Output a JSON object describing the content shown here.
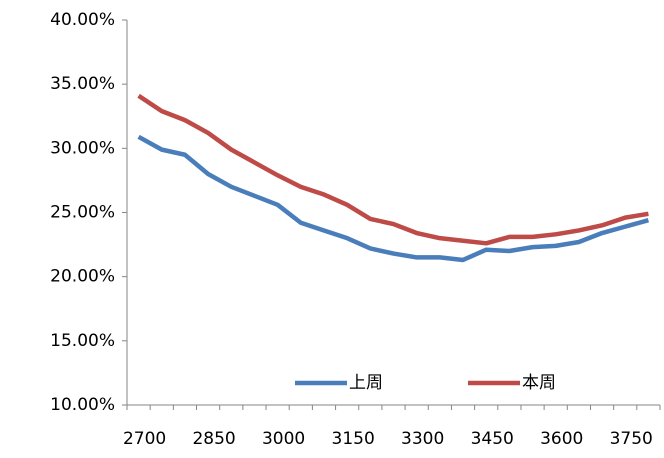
{
  "chart_data": {
    "type": "line",
    "categories": [
      2700,
      null,
      null,
      2850,
      null,
      null,
      3000,
      null,
      null,
      3150,
      null,
      null,
      3300,
      null,
      null,
      3450,
      null,
      null,
      3600,
      null,
      null,
      3750,
      null
    ],
    "series": [
      {
        "name": "上周",
        "color": "#4a7ebb",
        "values": [
          30.9,
          29.9,
          29.5,
          28.0,
          27.0,
          26.3,
          25.6,
          24.2,
          23.6,
          23.0,
          22.2,
          21.8,
          21.5,
          21.5,
          21.3,
          22.1,
          22.0,
          22.3,
          22.4,
          22.7,
          23.4,
          23.9,
          24.4
        ]
      },
      {
        "name": "本周",
        "color": "#be4b48",
        "values": [
          34.1,
          32.9,
          32.2,
          31.2,
          29.9,
          28.9,
          27.9,
          27.0,
          26.4,
          25.6,
          24.5,
          24.1,
          23.4,
          23.0,
          22.8,
          22.6,
          23.1,
          23.1,
          23.3,
          23.6,
          24.0,
          24.6,
          24.9
        ]
      }
    ],
    "ylim": [
      10,
      40
    ],
    "yticks": [
      {
        "value": 10,
        "label": "10.00%"
      },
      {
        "value": 15,
        "label": "15.00%"
      },
      {
        "value": 20,
        "label": "20.00%"
      },
      {
        "value": 25,
        "label": "25.00%"
      },
      {
        "value": 30,
        "label": "30.00%"
      },
      {
        "value": 35,
        "label": "35.00%"
      },
      {
        "value": 40,
        "label": "40.00%"
      }
    ],
    "grid": false,
    "legend": "lower-right"
  }
}
